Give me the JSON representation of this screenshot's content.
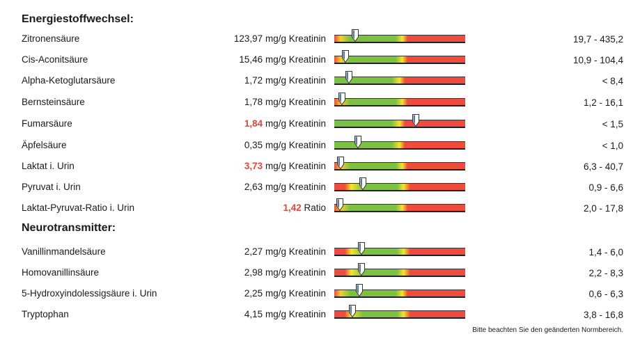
{
  "sections": [
    {
      "title": "Energiestoffwechsel:",
      "rows": [
        {
          "name": "Zitronensäure",
          "value": "123,97",
          "unit": "mg/g Kreatinin",
          "flag": false,
          "marker": 0.16,
          "range": "19,7 - 435,2"
        },
        {
          "name": "Cis-Aconitsäure",
          "value": "15,46",
          "unit": "mg/g Kreatinin",
          "flag": false,
          "marker": 0.085,
          "range": "10,9 - 104,4"
        },
        {
          "name": "Alpha-Ketoglutarsäure",
          "value": "1,72",
          "unit": "mg/g Kreatinin",
          "flag": false,
          "marker": 0.11,
          "range": "< 8,4"
        },
        {
          "name": "Bernsteinsäure",
          "value": "1,78",
          "unit": "mg/g Kreatinin",
          "flag": false,
          "marker": 0.06,
          "range": "1,2 - 16,1"
        },
        {
          "name": "Fumarsäure",
          "value": "1,84",
          "unit": "mg/g Kreatinin",
          "flag": true,
          "marker": 0.62,
          "range": "< 1,5"
        },
        {
          "name": "Äpfelsäure",
          "value": "0,35",
          "unit": "mg/g Kreatinin",
          "flag": false,
          "marker": 0.18,
          "range": "< 1,0"
        },
        {
          "name": "Laktat i. Urin",
          "value": "3,73",
          "unit": "mg/g Kreatinin",
          "flag": true,
          "marker": 0.05,
          "range": "6,3 - 40,7"
        },
        {
          "name": "Pyruvat i. Urin",
          "value": "2,63",
          "unit": "mg/g Kreatinin",
          "flag": false,
          "marker": 0.22,
          "range": "0,9 - 6,6"
        },
        {
          "name": "Laktat-Pyruvat-Ratio i. Urin",
          "value": "1,42",
          "unit": "Ratio",
          "flag": true,
          "marker": 0.04,
          "range": "2,0 - 17,8"
        }
      ]
    },
    {
      "title": "Neurotransmitter:",
      "rows": [
        {
          "name": "Vanillinmandelsäure",
          "value": "2,27",
          "unit": "mg/g Kreatinin",
          "flag": false,
          "marker": 0.21,
          "range": "1,4 - 6,0"
        },
        {
          "name": "Homovanillinsäure",
          "value": "2,98",
          "unit": "mg/g Kreatinin",
          "flag": false,
          "marker": 0.21,
          "range": "2,2 - 8,3"
        },
        {
          "name": "5-Hydroxyindolessigsäure i. Urin",
          "value": "2,25",
          "unit": "mg/g Kreatinin",
          "flag": false,
          "marker": 0.19,
          "range": "0,6 - 6,3"
        },
        {
          "name": "Tryptophan",
          "value": "4,15",
          "unit": "mg/g Kreatinin",
          "flag": false,
          "marker": 0.14,
          "range": "3,8 - 16,8"
        }
      ]
    }
  ],
  "footnote": "Bitte beachten Sie den geänderten Normbereich."
}
